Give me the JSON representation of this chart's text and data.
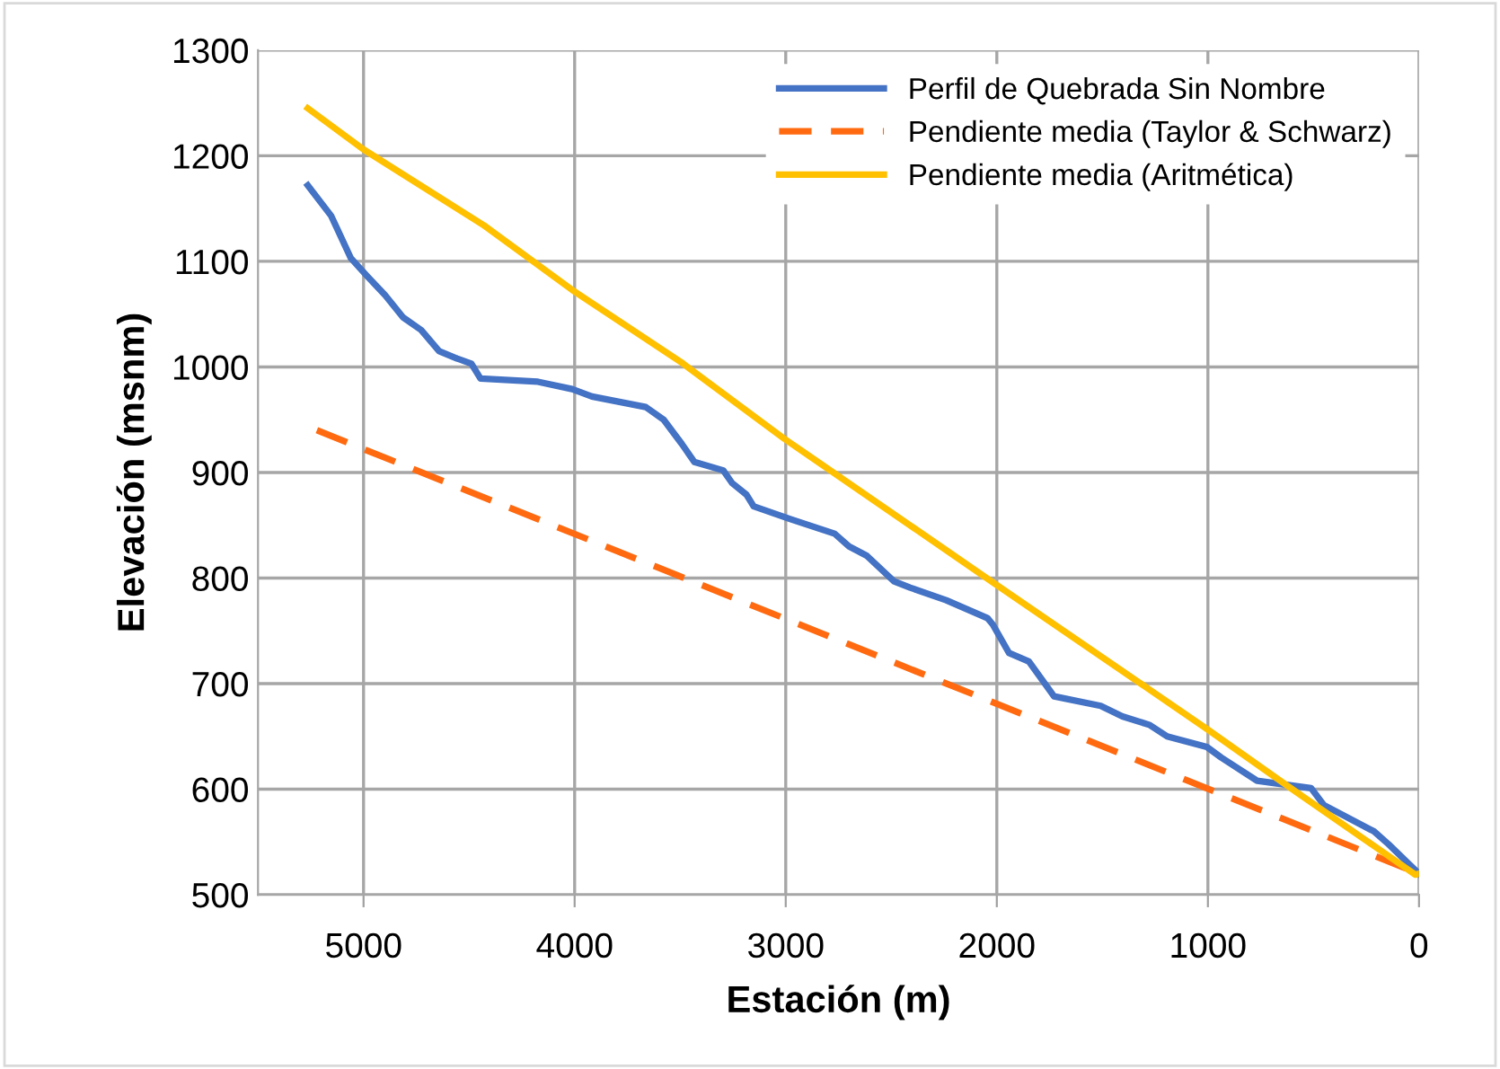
{
  "chart_data": {
    "type": "line",
    "xlabel": "Estación (m)",
    "ylabel": "Elevación (msnm)",
    "xlim": [
      5500,
      0
    ],
    "xticks": [
      5000,
      4000,
      3000,
      2000,
      1000,
      0
    ],
    "ylim": [
      500,
      1300
    ],
    "yticks": [
      500,
      600,
      700,
      800,
      900,
      1000,
      1100,
      1200,
      1300
    ],
    "grid": true,
    "legend": "top right",
    "marker": "none",
    "series": [
      {
        "name": "Perfil de Quebrada Sin Nombre",
        "color": "#4472c4",
        "line_style": "solid",
        "x": [
          5264,
          5153,
          5060,
          4983,
          4898,
          4813,
          4727,
          4642,
          4557,
          4489,
          4446,
          4174,
          4012,
          3918,
          3663,
          3578,
          3492,
          3433,
          3296,
          3254,
          3186,
          3152,
          2981,
          2768,
          2700,
          2615,
          2487,
          2411,
          2240,
          2044,
          2019,
          1942,
          1848,
          1729,
          1508,
          1405,
          1278,
          1193,
          1005,
          937,
          767,
          511,
          451,
          213,
          145,
          0
        ],
        "values": [
          1172,
          1143,
          1103,
          1086,
          1068,
          1047,
          1035,
          1015,
          1008,
          1003,
          989,
          986,
          979,
          972,
          962,
          950,
          927,
          910,
          902,
          890,
          879,
          868,
          856,
          842,
          830,
          821,
          797,
          791,
          779,
          762,
          756,
          729,
          721,
          688,
          679,
          669,
          661,
          650,
          640,
          630,
          608,
          601,
          585,
          560,
          548,
          520
        ]
      },
      {
        "name": "Pendiente media (Taylor & Schwarz)",
        "color": "#ff6a10",
        "line_style": "dashed",
        "x": [
          5221,
          0
        ],
        "values": [
          940,
          520
        ]
      },
      {
        "name": "Pendiente media (Aritmética)",
        "color": "#ffc000",
        "line_style": "solid",
        "x": [
          5264,
          5000,
          4429,
          4012,
          3492,
          3007,
          2019,
          997,
          622,
          17,
          0
        ],
        "values": [
          1245,
          1206,
          1134,
          1073,
          1004,
          932,
          796,
          656,
          603,
          519,
          520
        ]
      }
    ]
  }
}
